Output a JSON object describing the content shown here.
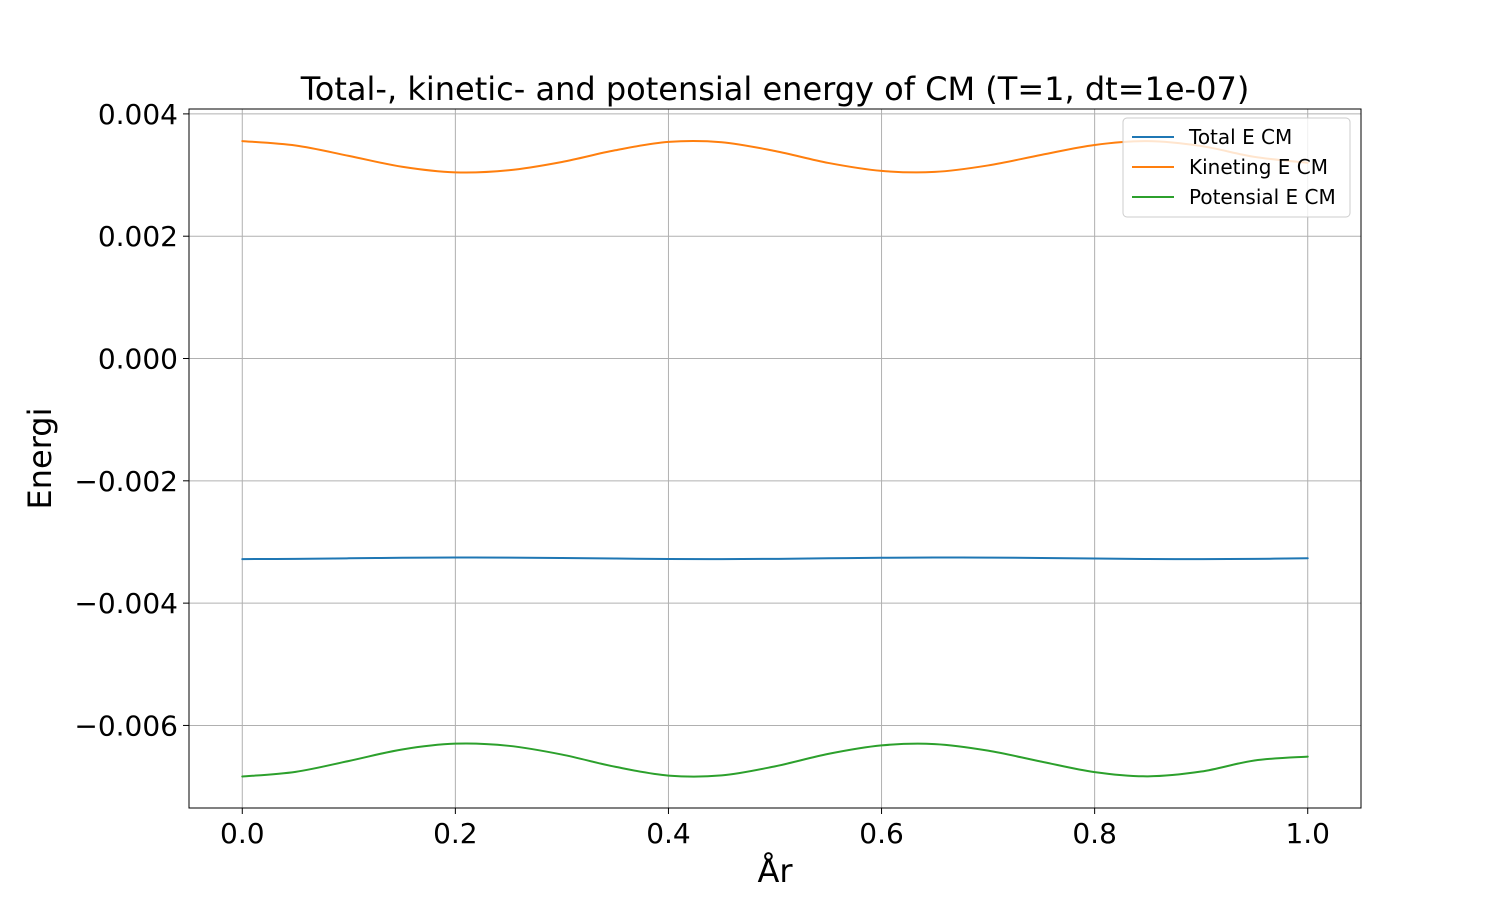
{
  "chart_data": {
    "type": "line",
    "title": "Total-, kinetic- and potensial energy of CM (T=1, dt=1e-07)",
    "xlabel": "År",
    "ylabel": "Energi",
    "xlim": [
      -0.05,
      1.05
    ],
    "ylim": [
      -0.00735,
      0.00408
    ],
    "xticks": [
      0.0,
      0.2,
      0.4,
      0.6,
      0.8,
      1.0
    ],
    "xtick_labels": [
      "0.0",
      "0.2",
      "0.4",
      "0.6",
      "0.8",
      "1.0"
    ],
    "yticks": [
      0.004,
      0.002,
      0.0,
      -0.002,
      -0.004,
      -0.006
    ],
    "ytick_labels": [
      "0.004",
      "0.002",
      "0.000",
      "−0.002",
      "−0.004",
      "−0.006"
    ],
    "grid": true,
    "legend_position": "upper right",
    "series": [
      {
        "name": "Total E CM",
        "color": "#1f77b4",
        "x": [
          0.0,
          0.05,
          0.1,
          0.15,
          0.2,
          0.25,
          0.3,
          0.35,
          0.4,
          0.45,
          0.5,
          0.55,
          0.6,
          0.65,
          0.7,
          0.75,
          0.8,
          0.85,
          0.9,
          0.95,
          1.0
        ],
        "y": [
          -0.00328,
          -0.003276,
          -0.003267,
          -0.003258,
          -0.003254,
          -0.003255,
          -0.003262,
          -0.003271,
          -0.003278,
          -0.00328,
          -0.003276,
          -0.003267,
          -0.003258,
          -0.003254,
          -0.003255,
          -0.003262,
          -0.003271,
          -0.003278,
          -0.00328,
          -0.003276,
          -0.003267
        ]
      },
      {
        "name": "Kineting E CM",
        "color": "#ff7f0e",
        "x": [
          0.0,
          0.05,
          0.1,
          0.15,
          0.2,
          0.25,
          0.3,
          0.35,
          0.4,
          0.45,
          0.5,
          0.55,
          0.6,
          0.65,
          0.7,
          0.75,
          0.8,
          0.85,
          0.9,
          0.95,
          1.0
        ],
        "y": [
          0.003555,
          0.003483,
          0.003314,
          0.003135,
          0.003044,
          0.003078,
          0.003214,
          0.003405,
          0.003542,
          0.003537,
          0.003393,
          0.003198,
          0.003068,
          0.003051,
          0.003157,
          0.00333,
          0.003492,
          0.003554,
          0.003474,
          0.003297,
          0.0032
        ]
      },
      {
        "name": "Potensial E CM",
        "color": "#2ca02c",
        "x": [
          0.0,
          0.05,
          0.1,
          0.15,
          0.2,
          0.25,
          0.3,
          0.35,
          0.4,
          0.45,
          0.5,
          0.55,
          0.6,
          0.65,
          0.7,
          0.75,
          0.8,
          0.85,
          0.9,
          0.95,
          1.0
        ],
        "y": [
          -0.006835,
          -0.006759,
          -0.006581,
          -0.006393,
          -0.006298,
          -0.006333,
          -0.006476,
          -0.006676,
          -0.00682,
          -0.006817,
          -0.006669,
          -0.006465,
          -0.006326,
          -0.006305,
          -0.006412,
          -0.006592,
          -0.006763,
          -0.006832,
          -0.006754,
          -0.006573,
          -0.00651
        ]
      }
    ]
  }
}
